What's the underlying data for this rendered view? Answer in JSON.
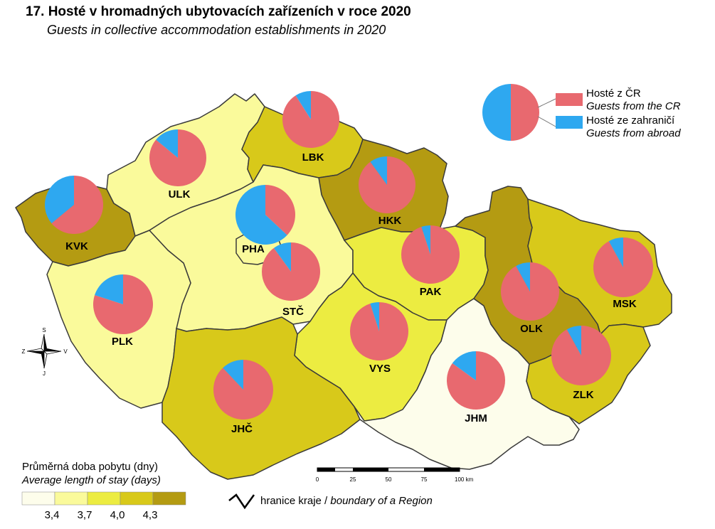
{
  "header": {
    "title": "17. Hosté v hromadných ubytovacích zařízeních v roce 2020",
    "subtitle": "Guests in collective accommodation establishments in 2020"
  },
  "colors": {
    "domestic": "#e8696f",
    "foreign": "#2ea8f0",
    "class_1": "#fdfdeb",
    "class_2": "#fafa9b",
    "class_3": "#ecec41",
    "class_4": "#d8c91a",
    "class_5": "#b49b12",
    "border": "#3a3a3a"
  },
  "pie_legend": {
    "domestic_cz": "Hosté z ČR",
    "domestic_en": "Guests from the CR",
    "foreign_cz": "Hosté ze zahraničí",
    "foreign_en": "Guests from abroad"
  },
  "legend": {
    "title": "Průměrná doba pobytu (dny)",
    "subtitle": "Average length of stay (days)",
    "breaks": [
      "3,4",
      "3,7",
      "4,0",
      "4,3"
    ],
    "classes": [
      "class_1",
      "class_2",
      "class_3",
      "class_4",
      "class_5"
    ]
  },
  "boundary_legend": {
    "cz": "hranice kraje",
    "separator": " / ",
    "en": "boundary of a Region"
  },
  "scale": {
    "ticks": [
      "0",
      "25",
      "50",
      "75",
      "100 km"
    ]
  },
  "compass": {
    "n": "S",
    "s": "J",
    "w": "Z",
    "e": "V"
  },
  "regions": [
    {
      "code": "KVK",
      "length_class": "class_5",
      "foreign_share": 0.36
    },
    {
      "code": "ULK",
      "length_class": "class_2",
      "foreign_share": 0.14
    },
    {
      "code": "LBK",
      "length_class": "class_4",
      "foreign_share": 0.09
    },
    {
      "code": "HKK",
      "length_class": "class_5",
      "foreign_share": 0.1
    },
    {
      "code": "PHA",
      "length_class": "class_2",
      "foreign_share": 0.63
    },
    {
      "code": "STČ",
      "length_class": "class_2",
      "foreign_share": 0.1
    },
    {
      "code": "PLK",
      "length_class": "class_2",
      "foreign_share": 0.2
    },
    {
      "code": "PAK",
      "length_class": "class_3",
      "foreign_share": 0.05
    },
    {
      "code": "VYS",
      "length_class": "class_3",
      "foreign_share": 0.05
    },
    {
      "code": "JHČ",
      "length_class": "class_4",
      "foreign_share": 0.12
    },
    {
      "code": "JHM",
      "length_class": "class_1",
      "foreign_share": 0.15
    },
    {
      "code": "OLK",
      "length_class": "class_5",
      "foreign_share": 0.08
    },
    {
      "code": "MSK",
      "length_class": "class_4",
      "foreign_share": 0.08
    },
    {
      "code": "ZLK",
      "length_class": "class_4",
      "foreign_share": 0.08
    }
  ]
}
